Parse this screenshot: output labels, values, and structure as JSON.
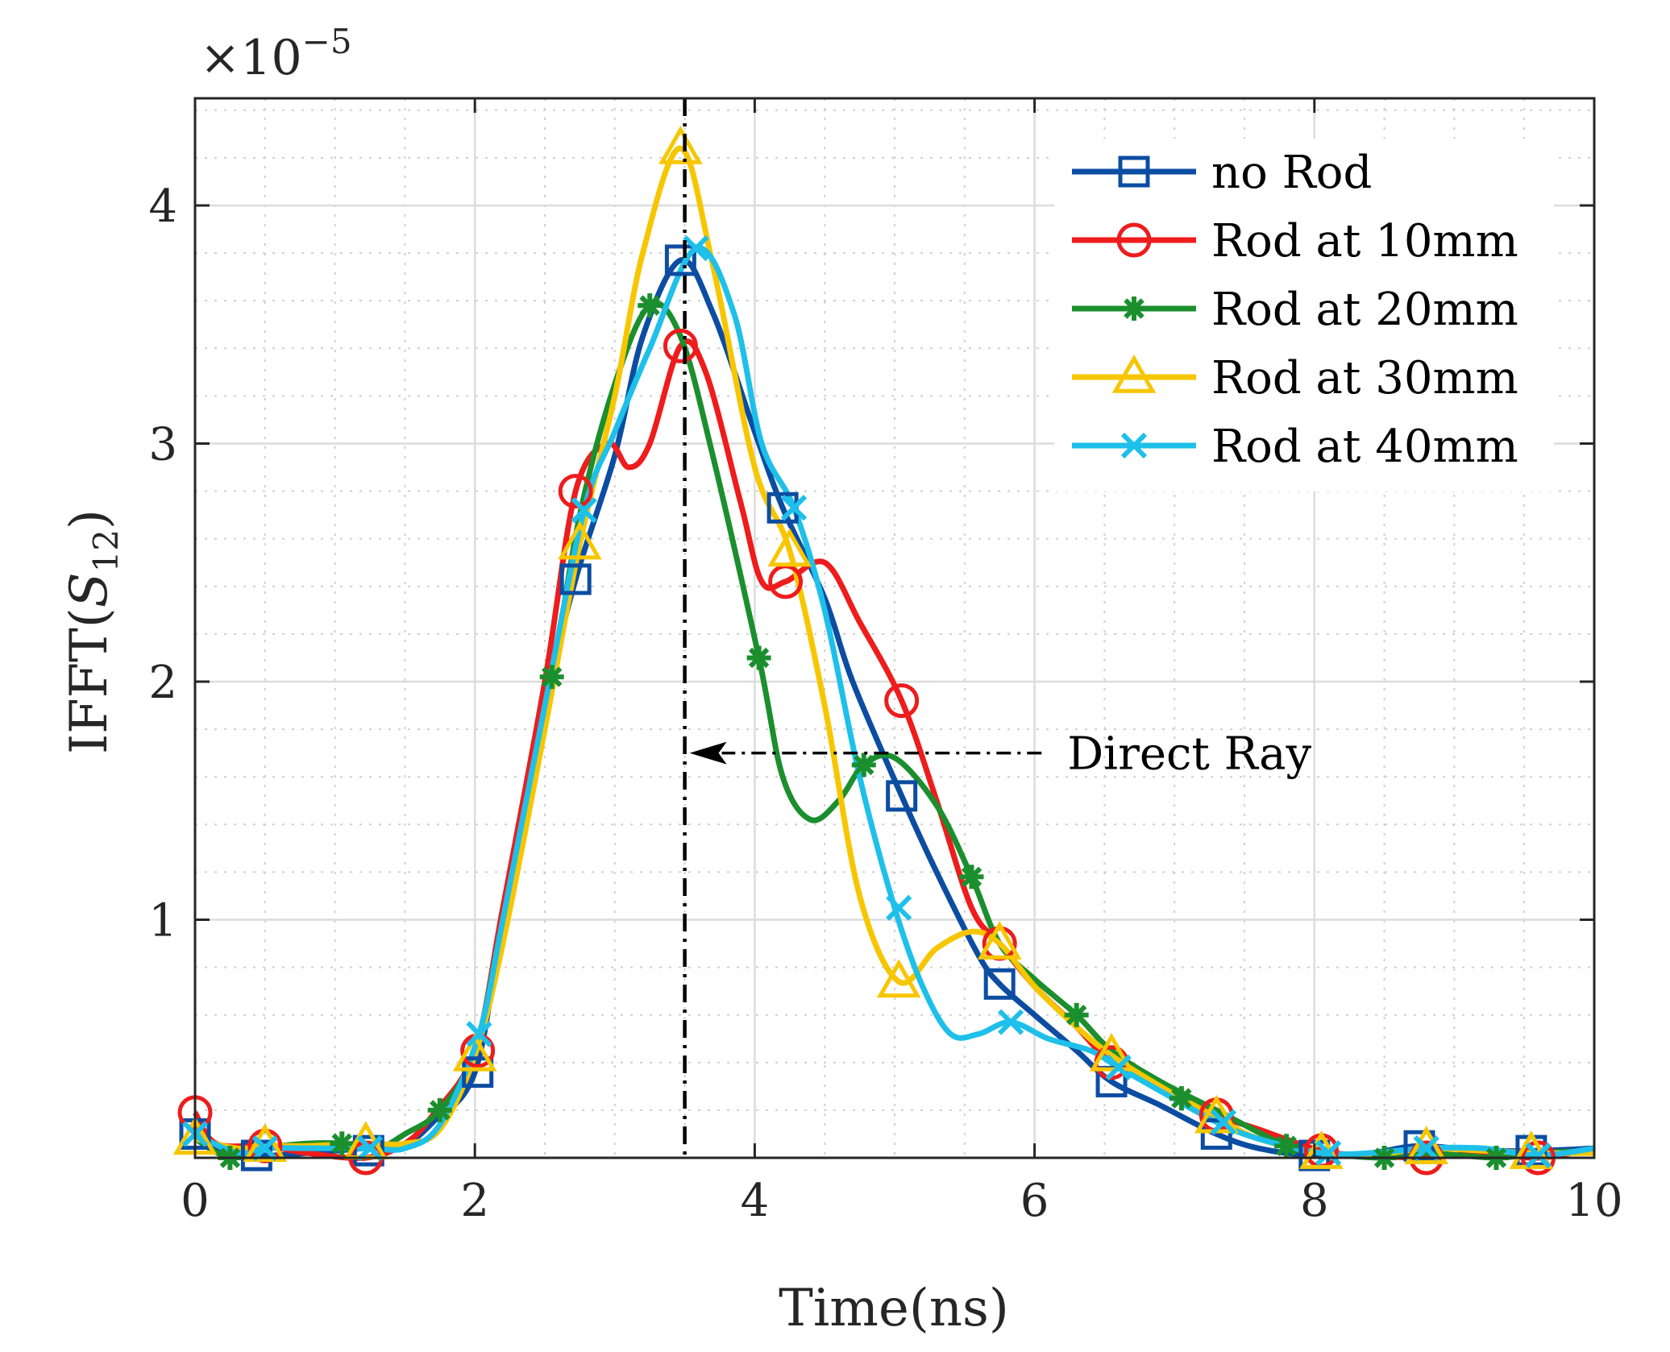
{
  "chart_data": {
    "type": "line",
    "title": "",
    "xlabel": "Time(ns)",
    "ylabel": "IFFT",
    "ylabel_arg": "S",
    "ylabel_sub": "12",
    "exponent_label": "×10",
    "exponent_power": "−5",
    "xlim": [
      0,
      10
    ],
    "ylim": [
      0,
      4.45
    ],
    "xticks": [
      0,
      2,
      4,
      6,
      8,
      10
    ],
    "yticks": [
      1,
      2,
      3,
      4
    ],
    "grid": true,
    "minor_grid": true,
    "legend_position": "top-right",
    "annotation": {
      "text": "Direct Ray",
      "x_line": 3.5,
      "arrow_from": [
        6.05,
        1.7
      ],
      "arrow_to": [
        3.5,
        1.7
      ]
    },
    "series": [
      {
        "name": "no Rod",
        "color": "#0C4DA2",
        "marker": "square",
        "x": [
          0,
          0.2,
          0.5,
          0.8,
          1.2,
          1.5,
          1.7,
          2.0,
          2.2,
          2.5,
          2.72,
          3.0,
          3.2,
          3.47,
          3.7,
          4.0,
          4.2,
          4.5,
          4.7,
          5.05,
          5.3,
          5.6,
          5.75,
          6.0,
          6.3,
          6.55,
          6.9,
          7.3,
          7.6,
          8.0,
          8.4,
          8.75,
          9.2,
          9.6,
          10
        ],
        "y": [
          0.1,
          0.03,
          0.01,
          0.02,
          0.04,
          0.06,
          0.15,
          0.36,
          1.0,
          1.9,
          2.43,
          2.95,
          3.45,
          3.77,
          3.55,
          3.05,
          2.73,
          2.35,
          2.0,
          1.52,
          1.2,
          0.85,
          0.73,
          0.6,
          0.45,
          0.32,
          0.22,
          0.1,
          0.04,
          0.01,
          0.02,
          0.05,
          0.03,
          0.03,
          0.04
        ],
        "marker_x": [
          0,
          0.44,
          1.24,
          2.02,
          2.72,
          3.47,
          4.2,
          5.05,
          5.75,
          6.55,
          7.3,
          8.0,
          8.75,
          9.55
        ],
        "marker_y": [
          0.1,
          0.01,
          0.03,
          0.36,
          2.43,
          3.77,
          2.73,
          1.52,
          0.73,
          0.32,
          0.1,
          0.01,
          0.05,
          0.03
        ]
      },
      {
        "name": "Rod at 10mm",
        "color": "#EE1C1C",
        "marker": "circle",
        "x": [
          0,
          0.15,
          0.5,
          0.8,
          1.22,
          1.5,
          1.7,
          2.0,
          2.2,
          2.5,
          2.72,
          2.95,
          3.1,
          3.25,
          3.47,
          3.65,
          3.9,
          4.05,
          4.22,
          4.5,
          4.75,
          5.05,
          5.3,
          5.55,
          5.75,
          6.0,
          6.3,
          6.55,
          6.9,
          7.3,
          7.6,
          8.05,
          8.4,
          8.8,
          9.2,
          9.6,
          10
        ],
        "y": [
          0.19,
          0.06,
          0.05,
          0.02,
          0.0,
          0.06,
          0.18,
          0.45,
          1.05,
          2.0,
          2.8,
          3.0,
          2.9,
          3.0,
          3.41,
          3.3,
          2.75,
          2.42,
          2.42,
          2.5,
          2.25,
          1.92,
          1.5,
          1.05,
          0.9,
          0.72,
          0.55,
          0.4,
          0.3,
          0.18,
          0.12,
          0.03,
          0.01,
          0.0,
          0.02,
          0.0,
          0.04
        ],
        "marker_x": [
          0,
          0.5,
          1.22,
          2.02,
          2.72,
          3.47,
          4.22,
          5.05,
          5.75,
          6.55,
          7.3,
          8.05,
          8.8,
          9.6
        ],
        "marker_y": [
          0.19,
          0.05,
          0.0,
          0.45,
          2.8,
          3.41,
          2.42,
          1.92,
          0.9,
          0.4,
          0.18,
          0.03,
          0.0,
          0.0
        ]
      },
      {
        "name": "Rod at 20mm",
        "color": "#1B8F2E",
        "marker": "star",
        "x": [
          0,
          0.25,
          0.5,
          0.8,
          1.05,
          1.3,
          1.5,
          1.75,
          2.0,
          2.2,
          2.55,
          2.75,
          3.0,
          3.25,
          3.47,
          3.7,
          4.03,
          4.2,
          4.4,
          4.6,
          4.78,
          5.0,
          5.3,
          5.55,
          5.75,
          6.0,
          6.3,
          6.55,
          6.9,
          7.3,
          7.8,
          8.05,
          8.5,
          8.8,
          9.3,
          9.6,
          10
        ],
        "y": [
          0.08,
          0.0,
          0.04,
          0.06,
          0.06,
          0.04,
          0.1,
          0.2,
          0.45,
          1.0,
          2.02,
          2.7,
          3.25,
          3.58,
          3.45,
          2.95,
          2.1,
          1.6,
          1.42,
          1.5,
          1.65,
          1.68,
          1.48,
          1.18,
          0.9,
          0.75,
          0.6,
          0.45,
          0.32,
          0.2,
          0.05,
          0.02,
          0.0,
          0.02,
          0.0,
          0.02,
          0.03
        ],
        "marker_x": [
          0.25,
          1.05,
          1.75,
          2.55,
          3.25,
          4.03,
          4.78,
          5.55,
          6.3,
          7.05,
          7.8,
          8.5,
          9.3
        ],
        "marker_y": [
          0.0,
          0.06,
          0.2,
          2.02,
          3.58,
          2.1,
          1.65,
          1.18,
          0.6,
          0.25,
          0.05,
          0.0,
          0.0
        ]
      },
      {
        "name": "Rod at 30mm",
        "color": "#F7C600",
        "marker": "triangle",
        "x": [
          0,
          0.3,
          0.5,
          0.8,
          1.22,
          1.5,
          1.75,
          2.0,
          2.2,
          2.5,
          2.75,
          3.0,
          3.2,
          3.47,
          3.7,
          4.0,
          4.25,
          4.5,
          4.75,
          5.03,
          5.3,
          5.55,
          5.75,
          6.0,
          6.3,
          6.55,
          6.9,
          7.3,
          7.6,
          8.05,
          8.4,
          8.8,
          9.2,
          9.6,
          10
        ],
        "y": [
          0.08,
          0.04,
          0.05,
          0.05,
          0.06,
          0.06,
          0.12,
          0.43,
          0.9,
          1.8,
          2.58,
          3.2,
          3.8,
          4.24,
          3.75,
          2.9,
          2.55,
          1.9,
          1.1,
          0.74,
          0.88,
          0.95,
          0.9,
          0.72,
          0.55,
          0.43,
          0.3,
          0.17,
          0.08,
          0.02,
          0.01,
          0.04,
          0.03,
          0.02,
          0.02
        ],
        "marker_x": [
          0,
          0.5,
          1.22,
          2.0,
          2.75,
          3.47,
          4.25,
          5.03,
          5.75,
          6.55,
          7.3,
          8.05,
          8.8,
          9.55
        ],
        "marker_y": [
          0.08,
          0.05,
          0.06,
          0.43,
          2.58,
          4.24,
          2.55,
          0.74,
          0.9,
          0.43,
          0.17,
          0.02,
          0.04,
          0.02
        ]
      },
      {
        "name": "Rod at 40mm",
        "color": "#1EC0EA",
        "marker": "x",
        "x": [
          0,
          0.3,
          0.5,
          0.8,
          1.25,
          1.5,
          1.75,
          2.03,
          2.2,
          2.5,
          2.78,
          3.0,
          3.25,
          3.58,
          3.85,
          4.05,
          4.28,
          4.5,
          4.75,
          5.0,
          5.2,
          5.4,
          5.6,
          5.83,
          6.1,
          6.4,
          6.6,
          6.9,
          7.3,
          7.6,
          8.05,
          8.4,
          8.8,
          9.2,
          9.6,
          10
        ],
        "y": [
          0.1,
          0.02,
          0.04,
          0.04,
          0.04,
          0.04,
          0.14,
          0.52,
          1.0,
          1.9,
          2.72,
          3.05,
          3.4,
          3.82,
          3.55,
          3.0,
          2.73,
          2.3,
          1.6,
          1.05,
          0.72,
          0.52,
          0.52,
          0.57,
          0.5,
          0.45,
          0.38,
          0.28,
          0.15,
          0.08,
          0.02,
          0.02,
          0.04,
          0.04,
          0.01,
          0.04
        ],
        "marker_x": [
          0,
          0.5,
          1.25,
          2.03,
          2.78,
          3.58,
          4.28,
          5.03,
          5.83,
          6.6,
          7.35,
          8.1,
          8.8,
          9.6
        ],
        "marker_y": [
          0.1,
          0.04,
          0.04,
          0.52,
          2.72,
          3.82,
          2.73,
          1.05,
          0.57,
          0.38,
          0.15,
          0.02,
          0.04,
          0.01
        ]
      }
    ]
  }
}
